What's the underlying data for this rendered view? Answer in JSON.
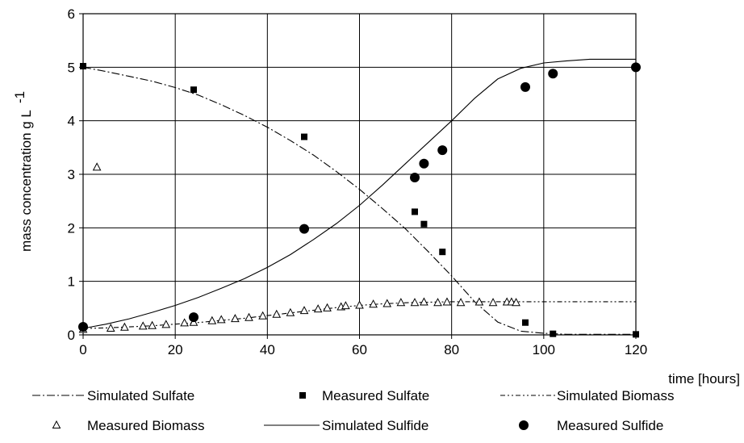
{
  "chart_data": {
    "type": "line",
    "title": "",
    "xlabel": "time [hours]",
    "ylabel": "mass concentration g L",
    "ylabel_superscript": "-1",
    "xlim": [
      0,
      120
    ],
    "ylim": [
      0,
      6
    ],
    "x_ticks": [
      "0",
      "20",
      "40",
      "60",
      "80",
      "100",
      "120"
    ],
    "y_ticks": [
      "0",
      "1",
      "2",
      "3",
      "4",
      "5",
      "6"
    ],
    "grid": true,
    "legend_position": "bottom",
    "series": [
      {
        "name": "Simulated Sulfate",
        "kind": "line",
        "style": "dash-dot",
        "x": [
          0,
          5,
          10,
          15,
          20,
          25,
          30,
          35,
          40,
          45,
          50,
          55,
          60,
          65,
          70,
          75,
          80,
          85,
          90,
          95,
          100,
          105,
          110,
          115,
          120
        ],
        "y": [
          5.0,
          4.92,
          4.83,
          4.74,
          4.62,
          4.48,
          4.3,
          4.1,
          3.88,
          3.63,
          3.36,
          3.05,
          2.72,
          2.36,
          1.98,
          1.55,
          1.1,
          0.62,
          0.24,
          0.07,
          0.03,
          0.01,
          0.01,
          0.01,
          0.01
        ]
      },
      {
        "name": "Measured Sulfate",
        "kind": "marker",
        "marker": "square",
        "x": [
          0,
          24,
          48,
          72,
          74,
          78,
          96,
          102,
          120
        ],
        "y": [
          5.02,
          4.58,
          3.7,
          2.3,
          2.07,
          1.55,
          0.23,
          0.02,
          0.01
        ]
      },
      {
        "name": "Simulated Biomass",
        "kind": "line",
        "style": "dash-dot-dot",
        "x": [
          0,
          5,
          10,
          15,
          20,
          25,
          30,
          35,
          40,
          45,
          50,
          55,
          60,
          65,
          70,
          75,
          80,
          85,
          90,
          95,
          100,
          110,
          120
        ],
        "y": [
          0.12,
          0.13,
          0.15,
          0.17,
          0.2,
          0.23,
          0.27,
          0.31,
          0.36,
          0.41,
          0.46,
          0.51,
          0.55,
          0.58,
          0.6,
          0.61,
          0.62,
          0.62,
          0.62,
          0.62,
          0.62,
          0.62,
          0.62
        ]
      },
      {
        "name": "Measured Biomass",
        "kind": "marker",
        "marker": "triangle",
        "x": [
          0,
          3,
          6,
          9,
          13,
          15,
          18,
          22,
          24,
          28,
          30,
          33,
          36,
          39,
          42,
          45,
          48,
          51,
          53,
          56,
          57,
          60,
          63,
          66,
          69,
          72,
          74,
          77,
          79,
          82,
          86,
          89,
          92,
          93,
          94
        ],
        "y": [
          0.1,
          3.13,
          0.12,
          0.14,
          0.16,
          0.17,
          0.19,
          0.22,
          0.23,
          0.26,
          0.28,
          0.3,
          0.32,
          0.35,
          0.38,
          0.41,
          0.45,
          0.48,
          0.5,
          0.52,
          0.54,
          0.55,
          0.57,
          0.58,
          0.6,
          0.6,
          0.61,
          0.6,
          0.61,
          0.6,
          0.61,
          0.6,
          0.61,
          0.61,
          0.6
        ]
      },
      {
        "name": "Simulated Sulfide",
        "kind": "line",
        "style": "solid",
        "x": [
          0,
          5,
          10,
          15,
          20,
          25,
          30,
          35,
          40,
          45,
          50,
          55,
          60,
          65,
          70,
          75,
          80,
          85,
          90,
          95,
          100,
          105,
          110,
          115,
          120
        ],
        "y": [
          0.12,
          0.2,
          0.3,
          0.42,
          0.55,
          0.7,
          0.87,
          1.05,
          1.26,
          1.5,
          1.78,
          2.08,
          2.42,
          2.8,
          3.2,
          3.6,
          4.0,
          4.42,
          4.78,
          4.98,
          5.08,
          5.12,
          5.15,
          5.15,
          5.15
        ]
      },
      {
        "name": "Measured Sulfide",
        "kind": "marker",
        "marker": "circle",
        "x": [
          0,
          24,
          48,
          72,
          74,
          78,
          96,
          102,
          120
        ],
        "y": [
          0.15,
          0.33,
          1.98,
          2.94,
          3.2,
          3.45,
          4.63,
          4.88,
          5.0
        ]
      }
    ]
  },
  "colors": {
    "line": "#000000",
    "grid": "#000000",
    "background": "#ffffff"
  }
}
